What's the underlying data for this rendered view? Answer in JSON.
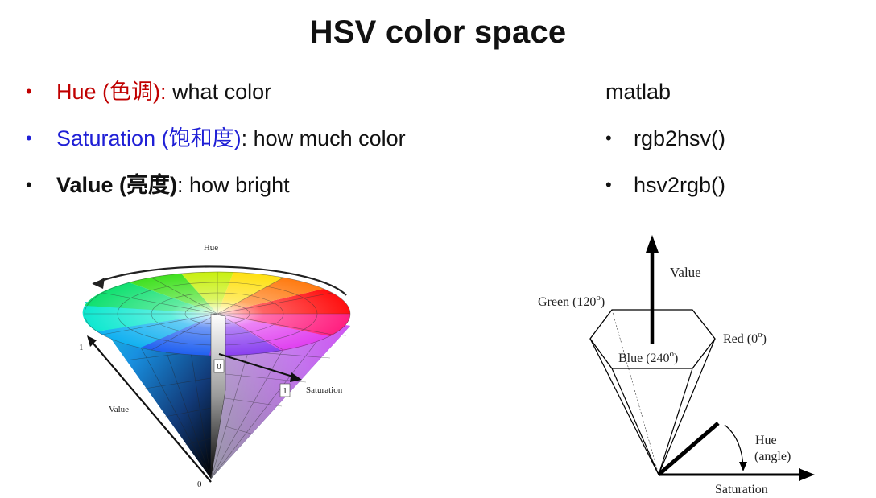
{
  "title": "HSV color space",
  "bullets": [
    {
      "term": "Hue (色调)",
      "desc": ": what color"
    },
    {
      "term": "Saturation (饱和度)",
      "desc": ": how much color"
    },
    {
      "term": "Value (亮度)",
      "desc": ": how bright"
    }
  ],
  "right": {
    "heading": "matlab",
    "items": [
      "rgb2hsv()",
      "hsv2rgb()"
    ]
  },
  "cone": {
    "hue": "Hue",
    "value": "Value",
    "saturation": "Saturation",
    "v1": "1",
    "v0": "0",
    "s0": "0",
    "s1": "1"
  },
  "diagram": {
    "value": "Value",
    "green": "Green (120",
    "red": "Red (0",
    "blue": "Blue (240",
    "deg": "o",
    "close": ")",
    "hue": "Hue",
    "angle": "(angle)",
    "saturation": "Saturation"
  },
  "colors": {
    "hue_text": "#c00000",
    "saturation_text": "#1f1fd6"
  }
}
